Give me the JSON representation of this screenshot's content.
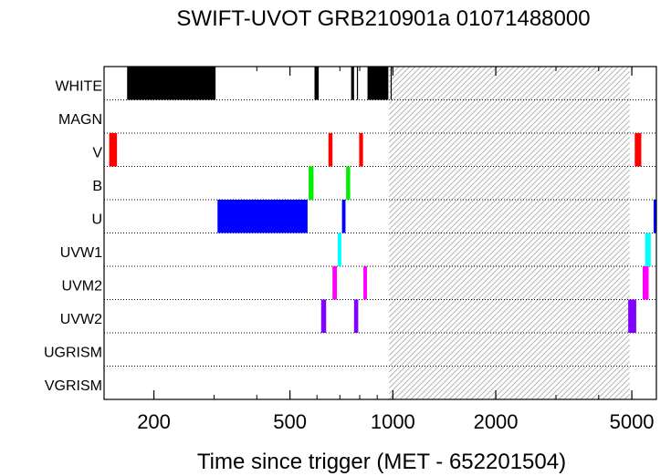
{
  "chart_data": {
    "type": "timeline",
    "title": "SWIFT-UVOT GRB210901a 01071488000",
    "xlabel": "Time since trigger (MET - 652201504)",
    "xscale": "log",
    "xlim": [
      143,
      5900
    ],
    "xticks": [
      200,
      500,
      1000,
      2000,
      5000
    ],
    "xtick_labels": [
      "200",
      "500",
      "1000",
      "2000",
      "5000"
    ],
    "rows": [
      "WHITE",
      "MAGN",
      "V",
      "B",
      "U",
      "UVW1",
      "UVM2",
      "UVW2",
      "UGRISM",
      "VGRISM"
    ],
    "hatched_region": [
      975,
      4930
    ],
    "exposures": [
      {
        "filter": "WHITE",
        "start": 167,
        "end": 303,
        "color": "#000000"
      },
      {
        "filter": "WHITE",
        "start": 590,
        "end": 607,
        "color": "#000000"
      },
      {
        "filter": "WHITE",
        "start": 755,
        "end": 770,
        "color": "#000000"
      },
      {
        "filter": "WHITE",
        "start": 785,
        "end": 787,
        "color": "#000000"
      },
      {
        "filter": "WHITE",
        "start": 843,
        "end": 970,
        "color": "#000000"
      },
      {
        "filter": "WHITE",
        "start": 985,
        "end": 987,
        "color": "#000000"
      },
      {
        "filter": "V",
        "start": 148,
        "end": 156,
        "color": "#ff0000"
      },
      {
        "filter": "V",
        "start": 648,
        "end": 666,
        "color": "#ff0000"
      },
      {
        "filter": "V",
        "start": 797,
        "end": 818,
        "color": "#ff0000"
      },
      {
        "filter": "V",
        "start": 5100,
        "end": 5330,
        "color": "#ff0000"
      },
      {
        "filter": "B",
        "start": 567,
        "end": 586,
        "color": "#00ee00"
      },
      {
        "filter": "B",
        "start": 730,
        "end": 750,
        "color": "#00ee00"
      },
      {
        "filter": "U",
        "start": 307,
        "end": 563,
        "color": "#0000ff"
      },
      {
        "filter": "U",
        "start": 710,
        "end": 727,
        "color": "#0000ff"
      },
      {
        "filter": "U",
        "start": 5790,
        "end": 5900,
        "color": "#0000ff"
      },
      {
        "filter": "UVW1",
        "start": 690,
        "end": 707,
        "color": "#00ffff"
      },
      {
        "filter": "UVW1",
        "start": 5470,
        "end": 5680,
        "color": "#00ffff"
      },
      {
        "filter": "UVM2",
        "start": 666,
        "end": 686,
        "color": "#ff00ff"
      },
      {
        "filter": "UVM2",
        "start": 820,
        "end": 840,
        "color": "#ff00ff"
      },
      {
        "filter": "UVM2",
        "start": 5380,
        "end": 5600,
        "color": "#ff00ff"
      },
      {
        "filter": "UVW2",
        "start": 617,
        "end": 638,
        "color": "#8000ff"
      },
      {
        "filter": "UVW2",
        "start": 770,
        "end": 792,
        "color": "#8000ff"
      },
      {
        "filter": "UVW2",
        "start": 4880,
        "end": 5150,
        "color": "#8000ff"
      }
    ]
  }
}
